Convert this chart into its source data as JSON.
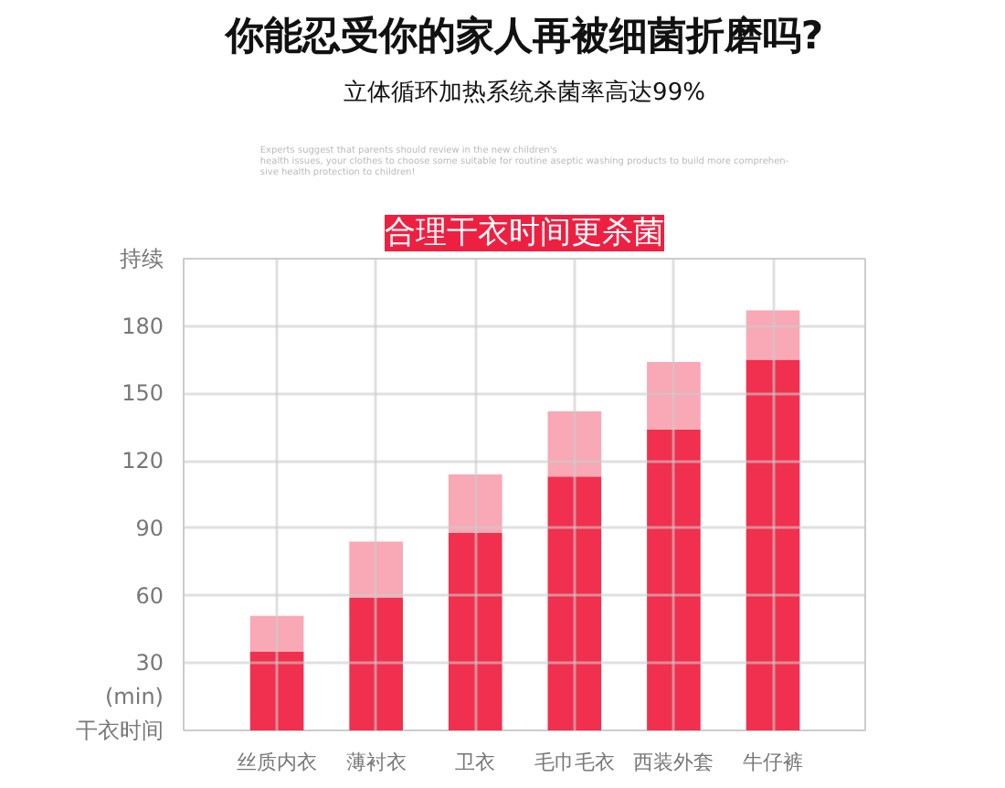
{
  "chart_data": {
    "type": "bar",
    "title": "你能忍受你的家人再被细菌折磨吗?",
    "subtitle": "立体循环加热系统杀菌率高达99%",
    "annotations": [
      "合理干衣时间更杀菌",
      "Experts suggest that parents should review in the new children's\nhealth issues, your clothes to choose some suitable for routine aseptic washing products to build more comprehen-\nsive health protection to children!",
      "(min)"
    ],
    "categories": [
      "丝质内衣",
      "薄衬衣",
      "卫衣",
      "毛巾毛衣",
      "西装外套",
      "牛仔裤"
    ],
    "stacked": true,
    "series": [
      {
        "color": "#f0304e",
        "values": [
          35,
          59,
          88,
          113,
          134,
          165
        ]
      },
      {
        "color": "#f9a8b5",
        "values": [
          16,
          25,
          26,
          29,
          30,
          22
        ]
      }
    ],
    "ylim": [
      0,
      210
    ],
    "yticks": [
      {
        "value": 0,
        "label": "干衣时间"
      },
      30,
      60,
      90,
      120,
      150,
      180,
      {
        "value": 210,
        "label": "持续"
      }
    ],
    "grid": true
  }
}
